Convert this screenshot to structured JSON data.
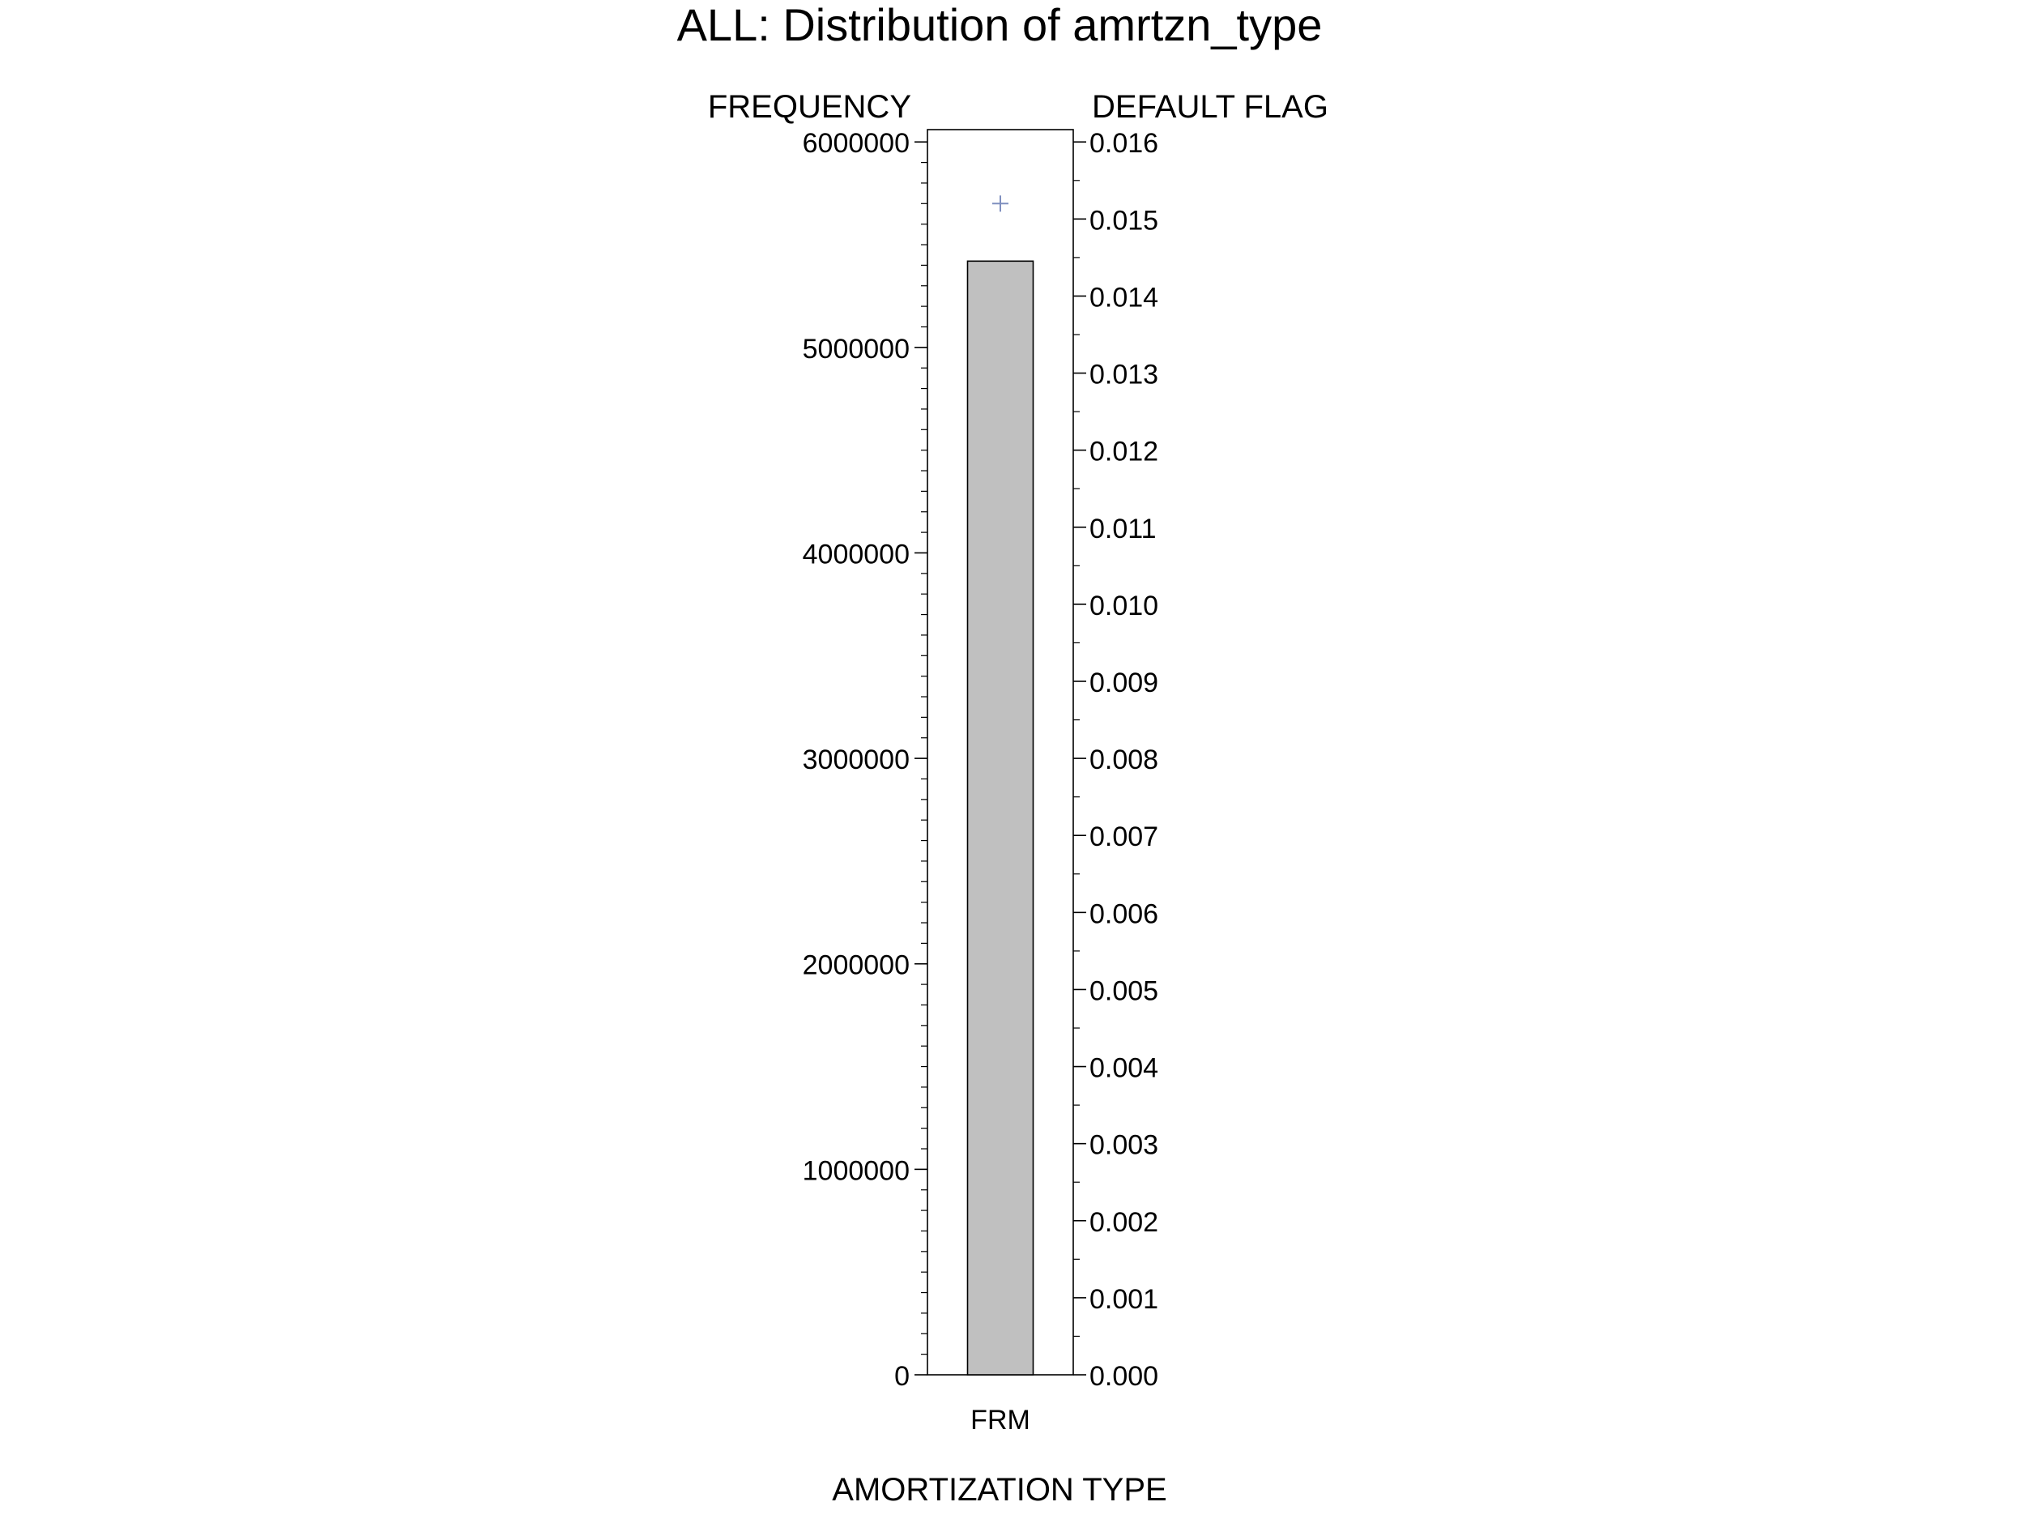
{
  "chart_data": {
    "type": "bar",
    "title": "ALL: Distribution of amrtzn_type",
    "xlabel": "AMORTIZATION TYPE",
    "ylabel_left": "FREQUENCY",
    "ylabel_right": "DEFAULT FLAG",
    "categories": [
      "FRM"
    ],
    "series": [
      {
        "axis": "left",
        "style": "bar",
        "values": [
          5420000
        ]
      },
      {
        "axis": "right",
        "style": "marker",
        "marker": "plus",
        "values": [
          0.0152
        ]
      }
    ],
    "ylim_left": [
      0,
      6060000
    ],
    "ylim_right": [
      0,
      0.01616
    ],
    "left_ticks": [
      0,
      1000000,
      2000000,
      3000000,
      4000000,
      5000000,
      6000000
    ],
    "left_tick_labels": [
      "0",
      "1000000",
      "2000000",
      "3000000",
      "4000000",
      "5000000",
      "6000000"
    ],
    "right_ticks": [
      0,
      0.001,
      0.002,
      0.003,
      0.004,
      0.005,
      0.006,
      0.007,
      0.008,
      0.009,
      0.01,
      0.011,
      0.012,
      0.013,
      0.014,
      0.015,
      0.016
    ],
    "right_tick_labels": [
      "0.000",
      "0.001",
      "0.002",
      "0.003",
      "0.004",
      "0.005",
      "0.006",
      "0.007",
      "0.008",
      "0.009",
      "0.010",
      "0.011",
      "0.012",
      "0.013",
      "0.014",
      "0.015",
      "0.016"
    ],
    "left_minor_ticks_per_major": 10,
    "right_minor_ticks_per_major": 2,
    "grid": false,
    "colors": {
      "bar_fill": "#c0c0c0",
      "bar_stroke": "#000000",
      "marker": "#7f8fbf",
      "axis": "#000000"
    }
  }
}
